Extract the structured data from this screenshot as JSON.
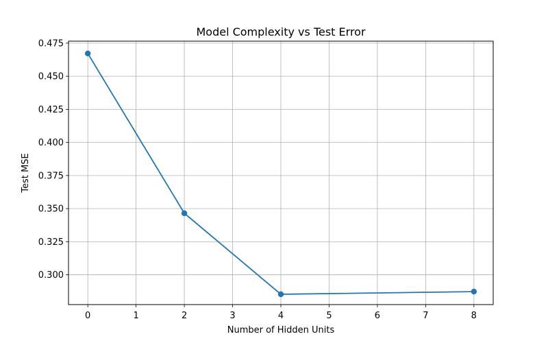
{
  "chart_data": {
    "type": "line",
    "title": "Model Complexity vs Test Error",
    "xlabel": "Number of Hidden Units",
    "ylabel": "Test MSE",
    "xlim": [
      -0.4,
      8.4
    ],
    "ylim": [
      0.2775,
      0.4765
    ],
    "xticks": [
      0,
      1,
      2,
      3,
      4,
      5,
      6,
      7,
      8
    ],
    "xtick_labels": [
      "0",
      "1",
      "2",
      "3",
      "4",
      "5",
      "6",
      "7",
      "8"
    ],
    "yticks": [
      0.3,
      0.325,
      0.35,
      0.375,
      0.4,
      0.425,
      0.45,
      0.475
    ],
    "ytick_labels": [
      "0.300",
      "0.325",
      "0.350",
      "0.375",
      "0.400",
      "0.425",
      "0.450",
      "0.475"
    ],
    "grid": true,
    "series": [
      {
        "color": "#1f77b4",
        "marker": "circle",
        "x": [
          0,
          2,
          4,
          8
        ],
        "y": [
          0.4672,
          0.3465,
          0.2853,
          0.2873
        ]
      }
    ]
  }
}
